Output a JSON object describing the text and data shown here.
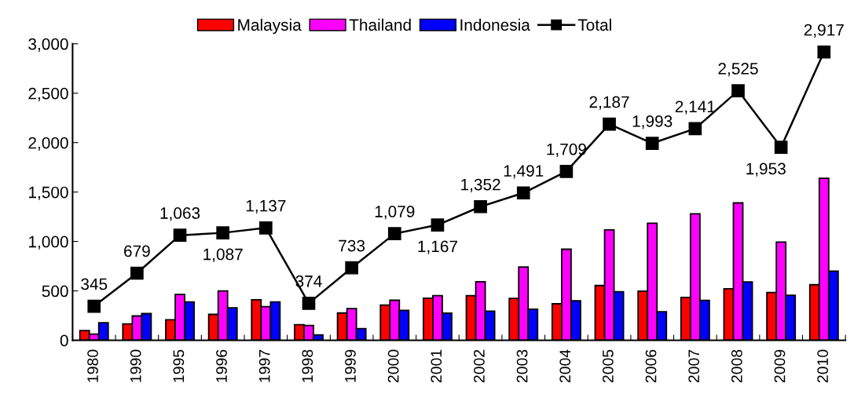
{
  "chart_data": {
    "type": "bar",
    "categories": [
      "1980",
      "1990",
      "1995",
      "1996",
      "1997",
      "1998",
      "1999",
      "2000",
      "2001",
      "2002",
      "2003",
      "2004",
      "2005",
      "2006",
      "2007",
      "2008",
      "2009",
      "2010"
    ],
    "series": [
      {
        "name": "Malaysia",
        "color": "#ff0000",
        "values": [
          98,
          166,
          207,
          262,
          410,
          158,
          276,
          356,
          426,
          451,
          424,
          369,
          554,
          497,
          434,
          521,
          484,
          562
        ]
      },
      {
        "name": "Thailand",
        "color": "#ff00ff",
        "values": [
          62,
          246,
          464,
          500,
          341,
          150,
          320,
          405,
          451,
          593,
          741,
          921,
          1117,
          1185,
          1279,
          1390,
          994,
          1639
        ]
      },
      {
        "name": "Indonesia",
        "color": "#0000ff",
        "values": [
          177,
          270,
          388,
          328,
          388,
          54,
          118,
          303,
          274,
          295,
          315,
          399,
          492,
          289,
          404,
          590,
          456,
          699
        ]
      },
      {
        "name": "Total",
        "type": "line",
        "color": "#000000",
        "marker": "square",
        "values": [
          345,
          679,
          1063,
          1087,
          1137,
          374,
          733,
          1079,
          1167,
          1352,
          1491,
          1709,
          2187,
          1993,
          2141,
          2525,
          1953,
          2917
        ],
        "value_labels": [
          "345",
          "679",
          "1,063",
          "1,087",
          "1,137",
          "374",
          "733",
          "1,079",
          "1,167",
          "1,352",
          "1,491",
          "1,709",
          "2,187",
          "1,993",
          "2,141",
          "2,525",
          "1,953",
          "2,917"
        ]
      }
    ],
    "ylim": [
      0,
      3000
    ],
    "yticks": [
      0,
      {
        "value": 500,
        "label": "500"
      },
      {
        "value": 1000,
        "label": "1,000"
      },
      {
        "value": 1500,
        "label": "1,500"
      },
      {
        "value": 2000,
        "label": "2,000"
      },
      {
        "value": 2500,
        "label": "2,500"
      },
      {
        "value": 3000,
        "label": "3,000"
      }
    ],
    "grid": false,
    "legend": "top"
  }
}
